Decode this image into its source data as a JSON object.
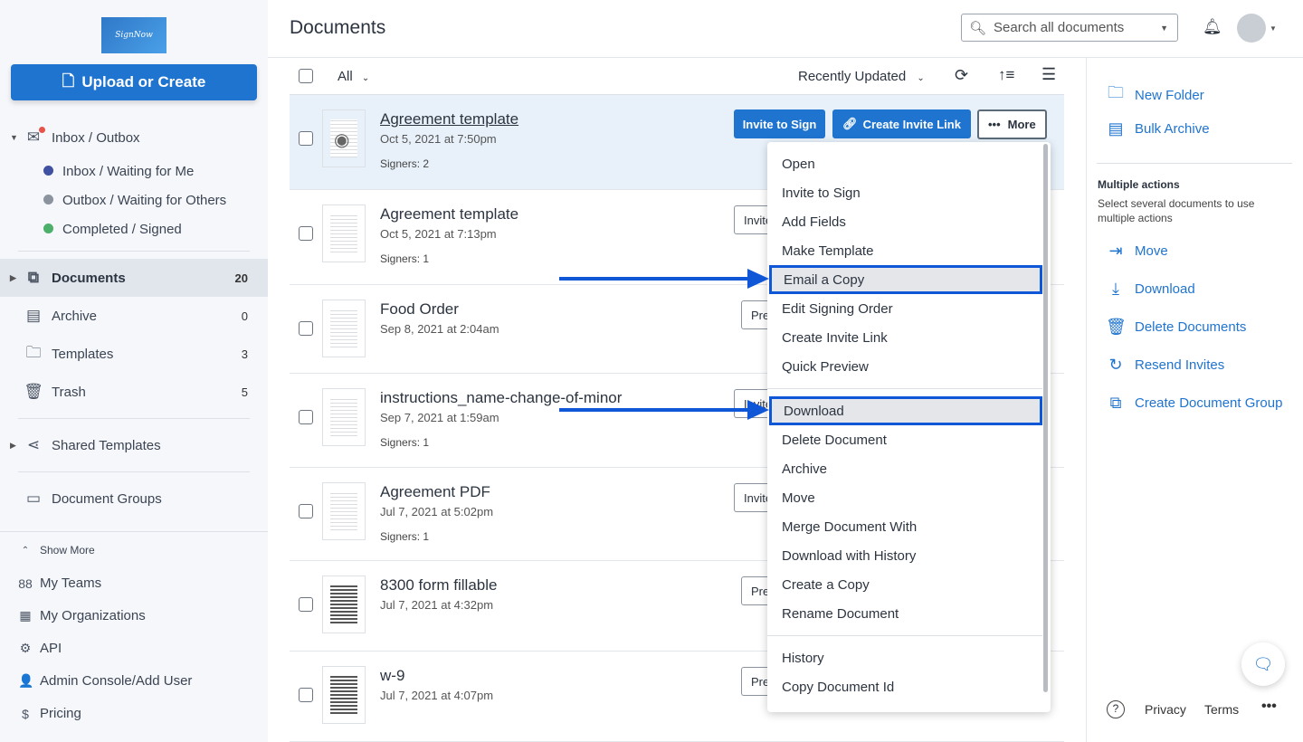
{
  "logo": "SignNow",
  "sidebar": {
    "upload_label": "Upload or Create",
    "inbox_outbox": "Inbox / Outbox",
    "sub": [
      {
        "label": "Inbox / Waiting for Me",
        "color": "#3f51a0"
      },
      {
        "label": "Outbox / Waiting for Others",
        "color": "#8a939e"
      },
      {
        "label": "Completed / Signed",
        "color": "#4caf6a"
      }
    ],
    "folders": [
      {
        "label": "Documents",
        "count": "20"
      },
      {
        "label": "Archive",
        "count": "0"
      },
      {
        "label": "Templates",
        "count": "3"
      },
      {
        "label": "Trash",
        "count": "5"
      }
    ],
    "shared_templates": "Shared Templates",
    "document_groups": "Document Groups",
    "show_more": "Show More",
    "bottom": [
      {
        "label": "My Teams"
      },
      {
        "label": "My Organizations"
      },
      {
        "label": "API"
      },
      {
        "label": "Admin Console/Add User"
      },
      {
        "label": "Pricing"
      }
    ]
  },
  "header": {
    "title": "Documents",
    "search_placeholder": "Search all documents"
  },
  "toolbar": {
    "filter": "All",
    "sort": "Recently Updated"
  },
  "rows": [
    {
      "title": "Agreement template",
      "date": "Oct 5, 2021 at 7:50pm",
      "signers": "Signers: 2"
    },
    {
      "title": "Agreement template",
      "date": "Oct 5, 2021 at 7:13pm",
      "signers": "Signers: 1",
      "btn": "Invite to Sign"
    },
    {
      "title": "Food Order",
      "date": "Sep 8, 2021 at 2:04am",
      "btn": "Preview"
    },
    {
      "title": "instructions_name-change-of-minor",
      "date": "Sep 7, 2021 at 1:59am",
      "signers": "Signers: 1",
      "btn": "Invite to Sign"
    },
    {
      "title": "Agreement PDF",
      "date": "Jul 7, 2021 at 5:02pm",
      "signers": "Signers: 1",
      "btn": "Invite to Sign"
    },
    {
      "title": "8300 form fillable",
      "date": "Jul 7, 2021 at 4:32pm",
      "btn": "Preview"
    },
    {
      "title": "w-9",
      "date": "Jul 7, 2021 at 4:07pm",
      "btn": "Preview"
    }
  ],
  "row_actions": {
    "invite": "Invite to Sign",
    "link": "Create Invite Link",
    "more": "More"
  },
  "menu": {
    "group1": [
      "Open",
      "Invite to Sign",
      "Add Fields",
      "Make Template",
      "Email a Copy",
      "Edit Signing Order",
      "Create Invite Link",
      "Quick Preview"
    ],
    "group2": [
      "Download",
      "Delete Document",
      "Archive",
      "Move",
      "Merge Document With",
      "Download with History",
      "Create a Copy",
      "Rename Document"
    ],
    "group3": [
      "History",
      "Copy Document Id"
    ]
  },
  "right": {
    "new_folder": "New Folder",
    "bulk_archive": "Bulk Archive",
    "multi_title": "Multiple actions",
    "multi_desc": "Select several documents to use multiple actions",
    "actions": [
      "Move",
      "Download",
      "Delete Documents",
      "Resend Invites",
      "Create Document Group"
    ],
    "privacy": "Privacy",
    "terms": "Terms"
  },
  "accent": "#1f74d0",
  "highlight": "#0f57d6"
}
